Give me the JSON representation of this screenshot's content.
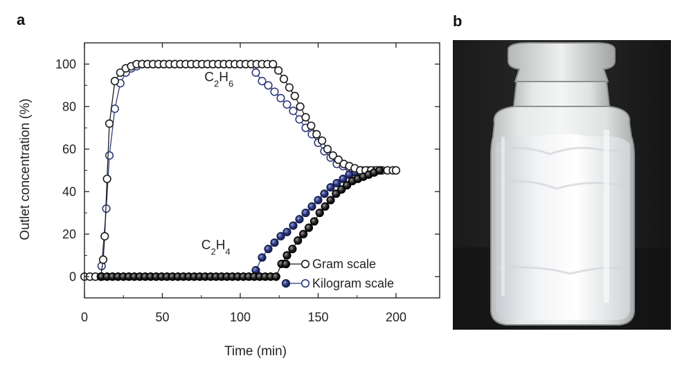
{
  "panel_a_label": "a",
  "panel_b_label": "b",
  "colors": {
    "gram": "#1a1a1a",
    "kilogram": "#2d3a7a",
    "axis": "#222222"
  },
  "chart_data": {
    "type": "scatter",
    "xlabel": "Time (min)",
    "ylabel": "Outlet concentration (%)",
    "xlim": [
      0,
      228
    ],
    "ylim": [
      -10,
      110
    ],
    "xticks": [
      "0",
      "50",
      "100",
      "150",
      "200"
    ],
    "yticks": [
      "0",
      "20",
      "40",
      "60",
      "80",
      "100"
    ],
    "legend_position": "bottom-right",
    "annotations": [
      {
        "text": "C2H6",
        "x": 77,
        "y": 92
      },
      {
        "text": "C2H4",
        "x": 75,
        "y": 13
      }
    ],
    "series": [
      {
        "name": "Gram scale",
        "gas": "C2H6",
        "style": "open-black",
        "x": [
          0,
          3.5,
          7,
          10.5,
          12,
          13,
          14.5,
          16,
          19.5,
          23,
          26.5,
          30,
          33.5,
          37,
          40.5,
          44,
          47.5,
          51,
          54.5,
          58,
          61.5,
          65,
          68.5,
          72,
          75.5,
          79,
          82.5,
          86,
          89.5,
          93,
          96.5,
          100,
          103.5,
          107,
          110.5,
          114,
          117.5,
          121,
          124.5,
          128,
          131.5,
          135,
          138.5,
          142,
          145.5,
          149,
          152.5,
          156,
          159.5,
          163,
          166.5,
          170,
          173.5,
          177,
          180.5,
          184,
          187.5,
          191,
          194.5,
          198,
          200
        ],
        "y": [
          0,
          0,
          0,
          0,
          8,
          19,
          46,
          72,
          92,
          96,
          98,
          99,
          100,
          100,
          100,
          100,
          100,
          100,
          100,
          100,
          100,
          100,
          100,
          100,
          100,
          100,
          100,
          100,
          100,
          100,
          100,
          100,
          100,
          100,
          100,
          100,
          100,
          100,
          97,
          93,
          89,
          85,
          80,
          75,
          71,
          67,
          64,
          60,
          57,
          55,
          53,
          52,
          51,
          50,
          50,
          50,
          50,
          50,
          50,
          50,
          50
        ]
      },
      {
        "name": "Gram scale",
        "gas": "C2H4",
        "style": "filled-black",
        "x": [
          11,
          14.5,
          18,
          21.5,
          25,
          28.5,
          32,
          35.5,
          39,
          42.5,
          46,
          49.5,
          53,
          56.5,
          60,
          63.5,
          67,
          70.5,
          74,
          77.5,
          81,
          84.5,
          88,
          91.5,
          95,
          98.5,
          102,
          105.5,
          109,
          112.5,
          116,
          119.5,
          123,
          126.5,
          130,
          133.5,
          137,
          140.5,
          144,
          147.5,
          151,
          154.5,
          158,
          161.5,
          165,
          168.5,
          172,
          175.5,
          179,
          182.5,
          186,
          189.5
        ],
        "y": [
          0,
          0,
          0,
          0,
          0,
          0,
          0,
          0,
          0,
          0,
          0,
          0,
          0,
          0,
          0,
          0,
          0,
          0,
          0,
          0,
          0,
          0,
          0,
          0,
          0,
          0,
          0,
          0,
          0,
          0,
          0,
          0,
          0,
          6,
          10,
          13,
          17,
          20,
          23,
          26,
          30,
          33,
          36,
          39,
          41,
          43,
          45,
          46,
          47,
          48,
          49,
          50
        ]
      },
      {
        "name": "Kilogram scale",
        "gas": "C2H6",
        "style": "open-blue",
        "x": [
          11,
          14,
          16,
          19.5,
          23,
          26.5,
          30,
          33.5,
          37,
          40.5,
          44,
          47.5,
          51,
          54.5,
          58,
          61.5,
          65,
          68.5,
          72,
          75.5,
          79,
          82.5,
          86,
          89.5,
          93,
          96.5,
          100,
          103.5,
          107,
          110,
          114,
          118,
          122,
          126,
          130,
          134,
          138,
          142,
          146,
          150,
          154,
          158,
          162,
          166,
          170,
          174,
          178,
          182,
          186
        ],
        "y": [
          5,
          32,
          57,
          79,
          91,
          96,
          98,
          99,
          100,
          100,
          100,
          100,
          100,
          100,
          100,
          100,
          100,
          100,
          100,
          100,
          100,
          100,
          100,
          100,
          100,
          100,
          100,
          100,
          100,
          96,
          92,
          90,
          87,
          84,
          81,
          78,
          74,
          70,
          67,
          63,
          59,
          56,
          53,
          52,
          51,
          50,
          50,
          50,
          50
        ]
      },
      {
        "name": "Kilogram scale",
        "gas": "C2H4",
        "style": "filled-blue",
        "x": [
          110,
          114,
          118,
          122,
          126,
          130,
          134,
          138,
          142,
          146,
          150,
          154,
          158,
          162,
          166,
          170,
          174
        ],
        "y": [
          3,
          9,
          13,
          16,
          19,
          21,
          24,
          27,
          30,
          33,
          36,
          39,
          42,
          44,
          46,
          48,
          49
        ]
      }
    ],
    "legend": [
      {
        "label": "Gram scale",
        "key": "gram"
      },
      {
        "label": "Kilogram scale",
        "key": "kilogram"
      }
    ]
  }
}
